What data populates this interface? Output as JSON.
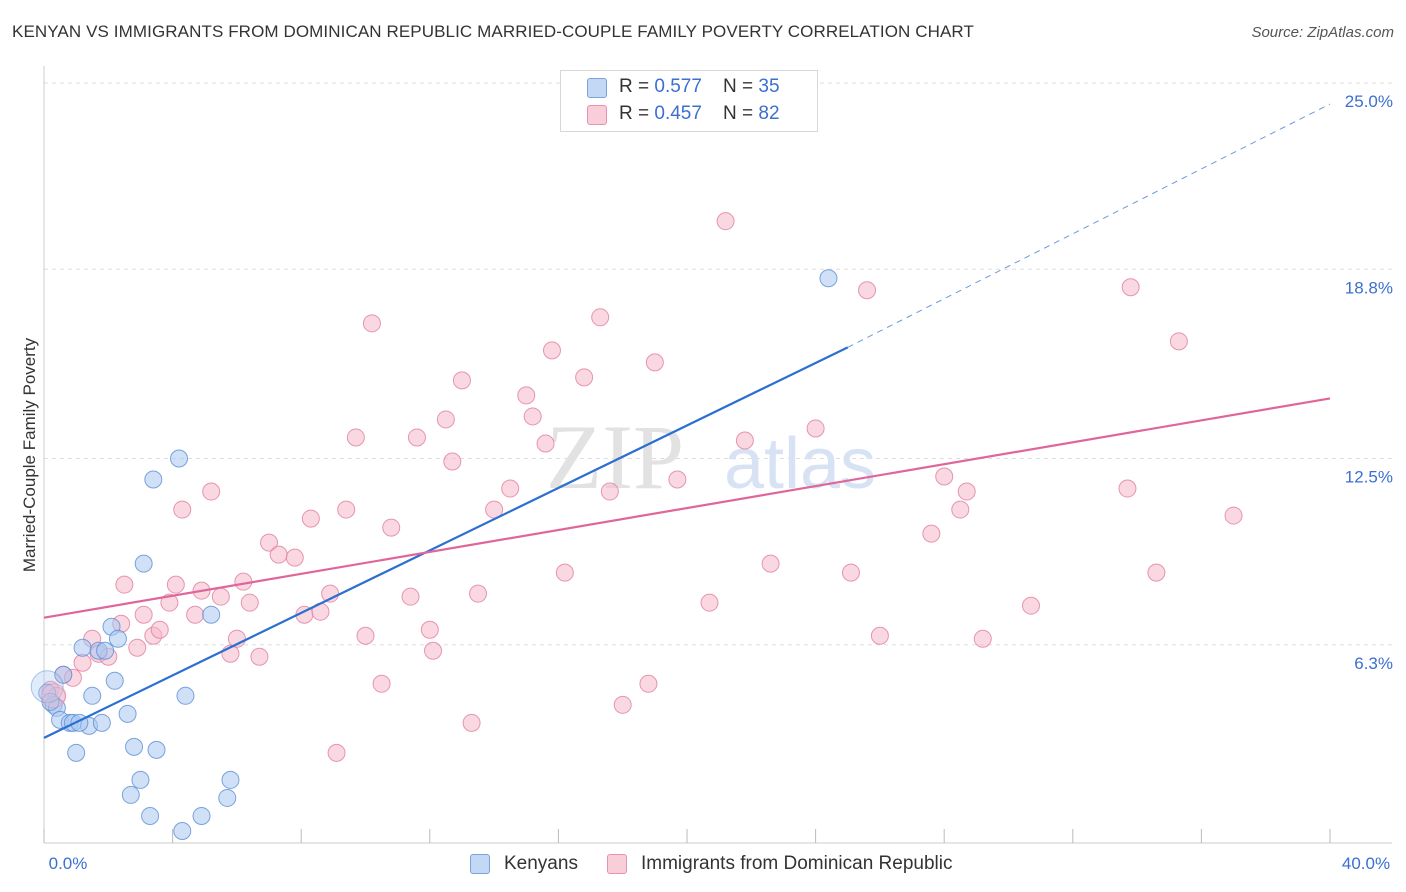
{
  "header": {
    "title": "KENYAN VS IMMIGRANTS FROM DOMINICAN REPUBLIC MARRIED-COUPLE FAMILY POVERTY CORRELATION CHART",
    "source": "Source: ZipAtlas.com"
  },
  "legend_top": {
    "rows": [
      {
        "r_label": "R = ",
        "r_value": "0.577",
        "n_label": "N = ",
        "n_value": "35",
        "color": "#a9c8f0"
      },
      {
        "r_label": "R = ",
        "r_value": "0.457",
        "n_label": "N = ",
        "n_value": "82",
        "color": "#f5b8cb"
      }
    ]
  },
  "watermark": {
    "text1": "ZIP",
    "text2": "atlas"
  },
  "colors": {
    "kenyans_fill": "#a9c8f0",
    "kenyans_stroke": "#5b8fd6",
    "kenyans_line": "#2b6fd0",
    "dominican_fill": "#f5b8cb",
    "dominican_stroke": "#e07ea0",
    "dominican_line": "#e0669a",
    "tick_text": "#3b6fd0",
    "grid": "#dddddd"
  },
  "chart_data": {
    "type": "scatter",
    "title": "KENYAN VS IMMIGRANTS FROM DOMINICAN REPUBLIC MARRIED-COUPLE FAMILY POVERTY CORRELATION CHART",
    "xlabel": "",
    "ylabel": "Married-Couple Family Poverty",
    "xlim": [
      0,
      40
    ],
    "ylim": [
      0,
      25.4
    ],
    "x_tick_labels": [
      {
        "value": 0,
        "label": "0.0%"
      },
      {
        "value": 40,
        "label": "40.0%"
      }
    ],
    "y_tick_labels": [
      {
        "value": 6.3,
        "label": "6.3%"
      },
      {
        "value": 12.5,
        "label": "12.5%"
      },
      {
        "value": 18.8,
        "label": "18.8%"
      },
      {
        "value": 25.0,
        "label": "25.0%"
      }
    ],
    "grid": true,
    "legend_placement": "top-center",
    "series": [
      {
        "name": "Kenyans",
        "points": [
          [
            0.1,
            5.0
          ],
          [
            0.3,
            4.6
          ],
          [
            0.4,
            4.5
          ],
          [
            0.6,
            5.6
          ],
          [
            0.5,
            4.1
          ],
          [
            0.8,
            4.0
          ],
          [
            0.9,
            4.0
          ],
          [
            1.0,
            3.0
          ],
          [
            1.2,
            6.5
          ],
          [
            1.4,
            3.9
          ],
          [
            1.5,
            4.9
          ],
          [
            1.7,
            6.4
          ],
          [
            1.9,
            6.4
          ],
          [
            2.1,
            7.2
          ],
          [
            2.2,
            5.4
          ],
          [
            2.3,
            6.8
          ],
          [
            2.6,
            4.3
          ],
          [
            2.8,
            3.2
          ],
          [
            3.0,
            2.1
          ],
          [
            3.1,
            9.3
          ],
          [
            3.3,
            0.9
          ],
          [
            3.5,
            3.1
          ],
          [
            3.4,
            12.1
          ],
          [
            2.7,
            1.6
          ],
          [
            4.2,
            12.8
          ],
          [
            4.3,
            0.4
          ],
          [
            4.4,
            4.9
          ],
          [
            4.9,
            0.9
          ],
          [
            5.2,
            7.6
          ],
          [
            5.7,
            1.5
          ],
          [
            5.8,
            2.1
          ],
          [
            1.8,
            4.0
          ],
          [
            1.1,
            4.0
          ],
          [
            0.2,
            4.7
          ],
          [
            24.4,
            18.8
          ]
        ]
      },
      {
        "name": "Immigrants from Dominican Republic",
        "points": [
          [
            0.2,
            5.1
          ],
          [
            0.4,
            4.9
          ],
          [
            0.6,
            5.6
          ],
          [
            0.9,
            5.5
          ],
          [
            1.2,
            6.0
          ],
          [
            1.5,
            6.8
          ],
          [
            1.7,
            6.3
          ],
          [
            2.0,
            6.2
          ],
          [
            2.4,
            7.3
          ],
          [
            2.5,
            8.6
          ],
          [
            2.9,
            6.5
          ],
          [
            3.1,
            7.6
          ],
          [
            3.4,
            6.9
          ],
          [
            3.6,
            7.1
          ],
          [
            3.9,
            8.0
          ],
          [
            4.1,
            8.6
          ],
          [
            4.3,
            11.1
          ],
          [
            4.7,
            7.6
          ],
          [
            4.9,
            8.4
          ],
          [
            5.2,
            11.7
          ],
          [
            5.5,
            8.2
          ],
          [
            5.8,
            6.3
          ],
          [
            6.0,
            6.8
          ],
          [
            6.2,
            8.7
          ],
          [
            6.4,
            8.0
          ],
          [
            6.7,
            6.2
          ],
          [
            7.0,
            10.0
          ],
          [
            7.3,
            9.6
          ],
          [
            7.8,
            9.5
          ],
          [
            8.1,
            7.6
          ],
          [
            8.3,
            10.8
          ],
          [
            8.6,
            7.7
          ],
          [
            8.9,
            8.3
          ],
          [
            9.1,
            3.0
          ],
          [
            9.4,
            11.1
          ],
          [
            9.7,
            13.5
          ],
          [
            10.0,
            6.9
          ],
          [
            10.2,
            17.3
          ],
          [
            10.5,
            5.3
          ],
          [
            10.8,
            10.5
          ],
          [
            11.4,
            8.2
          ],
          [
            11.6,
            13.5
          ],
          [
            12.0,
            7.1
          ],
          [
            12.1,
            6.4
          ],
          [
            12.5,
            14.1
          ],
          [
            12.7,
            12.7
          ],
          [
            13.0,
            15.4
          ],
          [
            13.3,
            4.0
          ],
          [
            13.5,
            8.3
          ],
          [
            14.0,
            11.1
          ],
          [
            14.5,
            11.8
          ],
          [
            15.0,
            14.9
          ],
          [
            15.2,
            14.2
          ],
          [
            15.6,
            13.3
          ],
          [
            15.8,
            16.4
          ],
          [
            16.2,
            9.0
          ],
          [
            16.8,
            15.5
          ],
          [
            17.3,
            17.5
          ],
          [
            17.6,
            11.7
          ],
          [
            18.0,
            4.6
          ],
          [
            18.8,
            5.3
          ],
          [
            19.0,
            16.0
          ],
          [
            19.7,
            12.1
          ],
          [
            20.7,
            8.0
          ],
          [
            21.2,
            20.7
          ],
          [
            21.8,
            13.4
          ],
          [
            22.6,
            9.3
          ],
          [
            24.0,
            13.8
          ],
          [
            25.1,
            9.0
          ],
          [
            25.6,
            18.4
          ],
          [
            26.0,
            6.9
          ],
          [
            27.6,
            10.3
          ],
          [
            28.0,
            12.2
          ],
          [
            28.5,
            11.1
          ],
          [
            28.7,
            11.7
          ],
          [
            29.2,
            6.8
          ],
          [
            30.7,
            7.9
          ],
          [
            33.7,
            11.8
          ],
          [
            33.8,
            18.5
          ],
          [
            34.6,
            9.0
          ],
          [
            35.3,
            16.7
          ],
          [
            37.0,
            10.9
          ]
        ]
      }
    ],
    "trendlines": [
      {
        "series": "Kenyans",
        "x": [
          0,
          25.0
        ],
        "y": [
          3.5,
          16.5
        ],
        "dashed_extension": {
          "x": [
            25.0,
            40.0
          ],
          "y": [
            16.5,
            24.6
          ]
        }
      },
      {
        "series": "Immigrants from Dominican Republic",
        "x": [
          0,
          40.0
        ],
        "y": [
          7.5,
          14.8
        ]
      }
    ]
  },
  "bottom_legend": {
    "items": [
      {
        "label": "Kenyans",
        "color": "#a9c8f0"
      },
      {
        "label": "Immigrants from Dominican Republic",
        "color": "#f5b8cb"
      }
    ]
  }
}
